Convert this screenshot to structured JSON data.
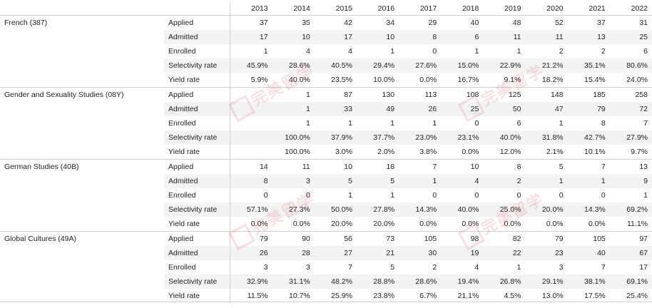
{
  "years": [
    "2013",
    "2014",
    "2015",
    "2016",
    "2017",
    "2018",
    "2019",
    "2020",
    "2021",
    "2022"
  ],
  "metrics": [
    "Applied",
    "Admitted",
    "Enrolled",
    "Selectivity rate",
    "Yield rate"
  ],
  "programs": [
    {
      "name": "French (387)",
      "rows": [
        [
          "37",
          "35",
          "42",
          "34",
          "29",
          "40",
          "48",
          "52",
          "37",
          "31"
        ],
        [
          "17",
          "10",
          "17",
          "10",
          "8",
          "6",
          "11",
          "11",
          "13",
          "25"
        ],
        [
          "1",
          "4",
          "4",
          "1",
          "0",
          "1",
          "1",
          "2",
          "2",
          "6"
        ],
        [
          "45.9%",
          "28.6%",
          "40.5%",
          "29.4%",
          "27.6%",
          "15.0%",
          "22.9%",
          "21.2%",
          "35.1%",
          "80.6%"
        ],
        [
          "5.9%",
          "40.0%",
          "23.5%",
          "10.0%",
          "0.0%",
          "16.7%",
          "9.1%",
          "18.2%",
          "15.4%",
          "24.0%"
        ]
      ]
    },
    {
      "name": "Gender and Sexuality Studies (08Y)",
      "rows": [
        [
          "",
          "1",
          "87",
          "130",
          "113",
          "108",
          "125",
          "148",
          "185",
          "258"
        ],
        [
          "",
          "1",
          "33",
          "49",
          "26",
          "25",
          "50",
          "47",
          "79",
          "72"
        ],
        [
          "",
          "1",
          "1",
          "1",
          "1",
          "0",
          "6",
          "1",
          "8",
          "7"
        ],
        [
          "",
          "100.0%",
          "37.9%",
          "37.7%",
          "23.0%",
          "23.1%",
          "40.0%",
          "31.8%",
          "42.7%",
          "27.9%"
        ],
        [
          "",
          "100.0%",
          "3.0%",
          "2.0%",
          "3.8%",
          "0.0%",
          "12.0%",
          "2.1%",
          "10.1%",
          "9.7%"
        ]
      ]
    },
    {
      "name": "German Studies (40B)",
      "rows": [
        [
          "14",
          "11",
          "10",
          "18",
          "7",
          "10",
          "8",
          "5",
          "7",
          "13"
        ],
        [
          "8",
          "3",
          "5",
          "5",
          "1",
          "4",
          "2",
          "1",
          "1",
          "9"
        ],
        [
          "0",
          "0",
          "1",
          "1",
          "0",
          "0",
          "0",
          "0",
          "0",
          "1"
        ],
        [
          "57.1%",
          "27.3%",
          "50.0%",
          "27.8%",
          "14.3%",
          "40.0%",
          "25.0%",
          "20.0%",
          "14.3%",
          "69.2%"
        ],
        [
          "0.0%",
          "0.0%",
          "20.0%",
          "20.0%",
          "0.0%",
          "0.0%",
          "0.0%",
          "0.0%",
          "0.0%",
          "11.1%"
        ]
      ]
    },
    {
      "name": "Global Cultures (49A)",
      "rows": [
        [
          "79",
          "90",
          "56",
          "73",
          "105",
          "98",
          "82",
          "79",
          "105",
          "97"
        ],
        [
          "26",
          "28",
          "27",
          "21",
          "30",
          "19",
          "22",
          "23",
          "40",
          "67"
        ],
        [
          "3",
          "3",
          "7",
          "5",
          "2",
          "4",
          "1",
          "3",
          "7",
          "17"
        ],
        [
          "32.9%",
          "31.1%",
          "48.2%",
          "28.8%",
          "28.6%",
          "19.4%",
          "26.8%",
          "29.1%",
          "38.1%",
          "69.1%"
        ],
        [
          "11.5%",
          "10.7%",
          "25.9%",
          "23.8%",
          "6.7%",
          "21.1%",
          "4.5%",
          "13.0%",
          "17.5%",
          "25.4%"
        ]
      ]
    }
  ],
  "watermark": "完美留学",
  "colors": {
    "watermark": "#dc3c3c",
    "stripe": "#f3f3f3",
    "border": "#cfcfcf"
  }
}
